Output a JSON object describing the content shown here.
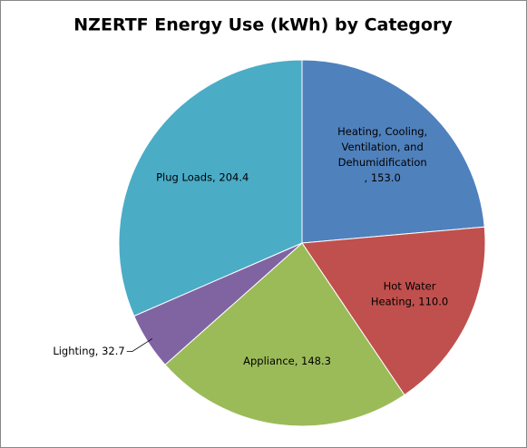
{
  "chart_data": {
    "type": "pie",
    "title": "NZERTF Energy Use (kWh) by Category",
    "values": [
      153.0,
      110.0,
      148.3,
      32.7,
      204.4
    ],
    "data_labels": [
      [
        "Heating, Cooling,",
        "Ventilation, and",
        "Dehumidification",
        ", 153.0"
      ],
      [
        "Hot Water",
        "Heating, 110.0"
      ],
      [
        "Appliance, 148.3"
      ],
      [
        "Lighting, 32.7"
      ],
      [
        "Plug Loads, 204.4"
      ]
    ],
    "colors": [
      "#4f81bd",
      "#c0504d",
      "#9bbb59",
      "#8064a2",
      "#4bacc6"
    ]
  }
}
